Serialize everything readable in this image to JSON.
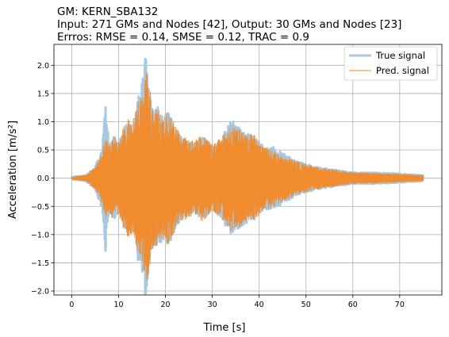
{
  "chart_data": {
    "type": "line",
    "title_lines": [
      "GM: KERN_SBA132",
      "Input: 271 GMs and Nodes [42], Output: 30 GMs and Nodes [23]",
      "Errros: RMSE = 0.14, SMSE = 0.12, TRAC = 0.9"
    ],
    "xlabel": "Time [s]",
    "ylabel": "Acceleration [m/s²]",
    "xlim": [
      -3.8,
      79
    ],
    "ylim": [
      -2.07,
      2.37
    ],
    "x_ticks": [
      0,
      10,
      20,
      30,
      40,
      50,
      60,
      70
    ],
    "y_ticks": [
      -2.0,
      -1.5,
      -1.0,
      -0.5,
      0.0,
      0.5,
      1.0,
      1.5,
      2.0
    ],
    "x_tick_labels": [
      "0",
      "10",
      "20",
      "30",
      "40",
      "50",
      "60",
      "70"
    ],
    "y_tick_labels": [
      "−2.0",
      "−1.5",
      "−1.0",
      "−0.5",
      "0.0",
      "0.5",
      "1.0",
      "1.5",
      "2.0"
    ],
    "grid": true,
    "legend_position": "top-right",
    "duration": 75,
    "series": [
      {
        "name": "True signal",
        "color": "#a6c8e2",
        "envelope": [
          [
            0,
            0.02
          ],
          [
            3,
            0.05
          ],
          [
            5,
            0.2
          ],
          [
            6.5,
            0.55
          ],
          [
            7.2,
            1.3
          ],
          [
            8,
            0.55
          ],
          [
            9,
            0.75
          ],
          [
            10,
            0.6
          ],
          [
            11,
            0.85
          ],
          [
            12,
            1.0
          ],
          [
            13,
            0.9
          ],
          [
            14,
            1.42
          ],
          [
            15,
            1.7
          ],
          [
            15.8,
            2.2
          ],
          [
            16.5,
            1.5
          ],
          [
            17.5,
            1.15
          ],
          [
            18.5,
            1.3
          ],
          [
            19.5,
            1.0
          ],
          [
            20.5,
            1.25
          ],
          [
            22,
            0.9
          ],
          [
            24,
            0.7
          ],
          [
            26,
            0.6
          ],
          [
            28,
            0.75
          ],
          [
            30,
            0.55
          ],
          [
            32,
            0.7
          ],
          [
            34,
            1.05
          ],
          [
            35,
            0.95
          ],
          [
            37,
            0.8
          ],
          [
            39,
            0.75
          ],
          [
            41,
            0.55
          ],
          [
            43,
            0.55
          ],
          [
            45,
            0.45
          ],
          [
            48,
            0.3
          ],
          [
            52,
            0.2
          ],
          [
            56,
            0.15
          ],
          [
            60,
            0.1
          ],
          [
            65,
            0.1
          ],
          [
            70,
            0.08
          ],
          [
            75,
            0.05
          ]
        ]
      },
      {
        "name": "Pred. signal",
        "color": "#f08c2e",
        "envelope": [
          [
            0,
            0.02
          ],
          [
            3,
            0.05
          ],
          [
            5,
            0.2
          ],
          [
            6.5,
            0.45
          ],
          [
            7.2,
            0.7
          ],
          [
            8,
            0.6
          ],
          [
            9,
            0.8
          ],
          [
            10,
            0.65
          ],
          [
            11,
            0.9
          ],
          [
            12,
            1.05
          ],
          [
            13,
            1.0
          ],
          [
            14,
            1.3
          ],
          [
            15,
            1.5
          ],
          [
            15.8,
            1.9
          ],
          [
            16.5,
            1.75
          ],
          [
            17.5,
            1.2
          ],
          [
            18.5,
            1.25
          ],
          [
            19.5,
            1.1
          ],
          [
            20.5,
            1.2
          ],
          [
            22,
            0.95
          ],
          [
            24,
            0.75
          ],
          [
            26,
            0.65
          ],
          [
            28,
            0.78
          ],
          [
            30,
            0.6
          ],
          [
            32,
            0.75
          ],
          [
            34,
            0.95
          ],
          [
            35,
            0.9
          ],
          [
            37,
            0.8
          ],
          [
            39,
            0.75
          ],
          [
            41,
            0.55
          ],
          [
            43,
            0.5
          ],
          [
            45,
            0.4
          ],
          [
            48,
            0.3
          ],
          [
            52,
            0.2
          ],
          [
            56,
            0.15
          ],
          [
            60,
            0.1
          ],
          [
            65,
            0.09
          ],
          [
            70,
            0.07
          ],
          [
            75,
            0.05
          ]
        ]
      }
    ]
  }
}
